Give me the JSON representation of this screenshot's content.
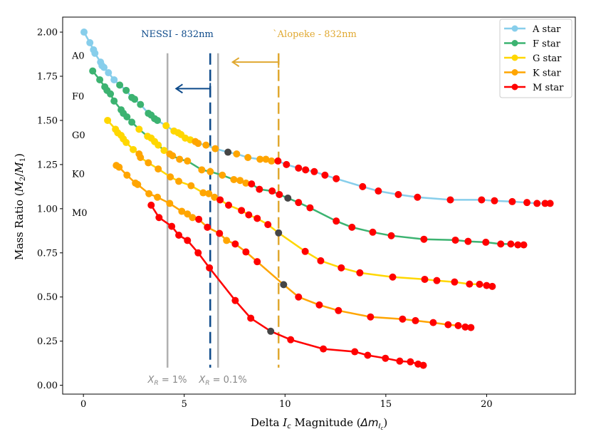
{
  "chart_data": {
    "type": "line",
    "xlabel": {
      "prefix": "Delta ",
      "var": "I",
      "sub": "c",
      "suffix": " Magnitude (",
      "delta": "Δm",
      "subvar": "I",
      "subsub": "c",
      "close": ")"
    },
    "ylabel": {
      "prefix": "Mass Ratio (",
      "num": "M",
      "num_sub": "2",
      "slash": "/",
      "den": "M",
      "den_sub": "1",
      "close": ")"
    },
    "xlim": [
      -1.03,
      24.4
    ],
    "ylim": [
      -0.05,
      2.085
    ],
    "xticks": [
      "0",
      "5",
      "10",
      "15",
      "20"
    ],
    "xtick_values": [
      0,
      5,
      10,
      15,
      20
    ],
    "yticks": [
      "0.00",
      "0.25",
      "0.50",
      "0.75",
      "1.00",
      "1.25",
      "1.50",
      "1.75",
      "2.00"
    ],
    "ytick_values": [
      0,
      0.25,
      0.5,
      0.75,
      1.0,
      1.25,
      1.5,
      1.75,
      2.0
    ],
    "grid": false,
    "legend_position": "top-right",
    "legend": [
      {
        "key": "A",
        "label": "A star",
        "color": "#87ceeb"
      },
      {
        "key": "F",
        "label": "F star",
        "color": "#3cb371"
      },
      {
        "key": "G",
        "label": "G star",
        "color": "#ffd700"
      },
      {
        "key": "K",
        "label": "K star",
        "color": "#ffa500"
      },
      {
        "key": "M",
        "label": "M star",
        "color": "#ff0000"
      }
    ],
    "highlight_color": "#454545",
    "series": [
      {
        "primary_label": "A0",
        "line_color": "#87ceeb",
        "points": [
          [
            0.03,
            2.0,
            "A"
          ],
          [
            0.32,
            1.94,
            "A"
          ],
          [
            0.5,
            1.9,
            "A"
          ],
          [
            0.57,
            1.88,
            "A"
          ],
          [
            0.85,
            1.83,
            "A"
          ],
          [
            0.92,
            1.81,
            "A"
          ],
          [
            1.02,
            1.8,
            "A"
          ],
          [
            1.24,
            1.77,
            "A"
          ],
          [
            1.52,
            1.73,
            "A"
          ],
          [
            1.8,
            1.7,
            "F"
          ],
          [
            2.12,
            1.67,
            "F"
          ],
          [
            2.4,
            1.63,
            "F"
          ],
          [
            2.54,
            1.62,
            "F"
          ],
          [
            2.83,
            1.59,
            "F"
          ],
          [
            3.22,
            1.54,
            "F"
          ],
          [
            3.36,
            1.53,
            "F"
          ],
          [
            3.53,
            1.51,
            "F"
          ],
          [
            3.67,
            1.5,
            "F"
          ],
          [
            4.1,
            1.47,
            "G"
          ],
          [
            4.49,
            1.44,
            "G"
          ],
          [
            4.7,
            1.43,
            "G"
          ],
          [
            4.84,
            1.42,
            "G"
          ],
          [
            5.05,
            1.4,
            "G"
          ],
          [
            5.3,
            1.39,
            "G"
          ],
          [
            5.55,
            1.38,
            "K"
          ],
          [
            5.69,
            1.37,
            "K"
          ],
          [
            6.08,
            1.36,
            "K"
          ],
          [
            6.54,
            1.34,
            "K"
          ],
          [
            7.17,
            1.32,
            "X"
          ],
          [
            7.6,
            1.31,
            "K"
          ],
          [
            8.16,
            1.29,
            "K"
          ],
          [
            8.76,
            1.28,
            "K"
          ],
          [
            9.05,
            1.28,
            "K"
          ],
          [
            9.33,
            1.27,
            "K"
          ],
          [
            9.65,
            1.27,
            "M"
          ],
          [
            10.07,
            1.25,
            "M"
          ],
          [
            10.67,
            1.23,
            "M"
          ],
          [
            11.02,
            1.22,
            "M"
          ],
          [
            11.45,
            1.21,
            "M"
          ],
          [
            11.98,
            1.19,
            "M"
          ],
          [
            12.54,
            1.17,
            "M"
          ],
          [
            13.85,
            1.125,
            "M"
          ],
          [
            14.63,
            1.1,
            "M"
          ],
          [
            15.62,
            1.08,
            "M"
          ],
          [
            16.57,
            1.065,
            "M"
          ],
          [
            18.2,
            1.05,
            "M"
          ],
          [
            19.75,
            1.05,
            "M"
          ],
          [
            20.39,
            1.045,
            "M"
          ],
          [
            21.27,
            1.04,
            "M"
          ],
          [
            22.0,
            1.035,
            "M"
          ],
          [
            22.5,
            1.03,
            "M"
          ],
          [
            22.9,
            1.03,
            "M"
          ],
          [
            23.15,
            1.03,
            "M"
          ]
        ]
      },
      {
        "primary_label": "F0",
        "line_color": "#3cb371",
        "points": [
          [
            0.46,
            1.78,
            "F"
          ],
          [
            0.81,
            1.73,
            "F"
          ],
          [
            1.06,
            1.69,
            "F"
          ],
          [
            1.17,
            1.67,
            "F"
          ],
          [
            1.34,
            1.65,
            "F"
          ],
          [
            1.52,
            1.61,
            "F"
          ],
          [
            1.87,
            1.56,
            "F"
          ],
          [
            1.98,
            1.54,
            "F"
          ],
          [
            2.16,
            1.52,
            "F"
          ],
          [
            2.4,
            1.49,
            "F"
          ],
          [
            2.76,
            1.45,
            "G"
          ],
          [
            3.18,
            1.41,
            "G"
          ],
          [
            3.36,
            1.4,
            "G"
          ],
          [
            3.53,
            1.38,
            "G"
          ],
          [
            3.71,
            1.36,
            "G"
          ],
          [
            4.0,
            1.33,
            "G"
          ],
          [
            4.28,
            1.31,
            "K"
          ],
          [
            4.42,
            1.3,
            "K"
          ],
          [
            4.77,
            1.28,
            "K"
          ],
          [
            5.16,
            1.27,
            "K"
          ],
          [
            5.87,
            1.22,
            "K"
          ],
          [
            6.29,
            1.21,
            "K"
          ],
          [
            6.89,
            1.19,
            "K"
          ],
          [
            7.46,
            1.165,
            "K"
          ],
          [
            7.77,
            1.16,
            "K"
          ],
          [
            8.06,
            1.145,
            "K"
          ],
          [
            8.34,
            1.14,
            "M"
          ],
          [
            8.73,
            1.11,
            "M"
          ],
          [
            9.36,
            1.1,
            "M"
          ],
          [
            9.72,
            1.08,
            "M"
          ],
          [
            10.14,
            1.06,
            "X"
          ],
          [
            10.67,
            1.035,
            "M"
          ],
          [
            11.24,
            1.005,
            "M"
          ],
          [
            12.54,
            0.93,
            "M"
          ],
          [
            13.32,
            0.895,
            "M"
          ],
          [
            14.35,
            0.867,
            "M"
          ],
          [
            15.27,
            0.847,
            "M"
          ],
          [
            16.89,
            0.827,
            "M"
          ],
          [
            18.45,
            0.822,
            "M"
          ],
          [
            19.08,
            0.815,
            "M"
          ],
          [
            19.96,
            0.81,
            "M"
          ],
          [
            20.7,
            0.8,
            "M"
          ],
          [
            21.2,
            0.8,
            "M"
          ],
          [
            21.55,
            0.795,
            "M"
          ],
          [
            21.84,
            0.795,
            "M"
          ]
        ]
      },
      {
        "primary_label": "G0",
        "line_color": "#ffd700",
        "points": [
          [
            1.2,
            1.5,
            "G"
          ],
          [
            1.59,
            1.45,
            "G"
          ],
          [
            1.7,
            1.43,
            "G"
          ],
          [
            1.87,
            1.415,
            "G"
          ],
          [
            1.98,
            1.395,
            "G"
          ],
          [
            2.12,
            1.375,
            "G"
          ],
          [
            2.47,
            1.335,
            "G"
          ],
          [
            2.76,
            1.31,
            "K"
          ],
          [
            2.83,
            1.29,
            "K"
          ],
          [
            3.22,
            1.26,
            "K"
          ],
          [
            3.71,
            1.225,
            "K"
          ],
          [
            4.31,
            1.18,
            "K"
          ],
          [
            4.73,
            1.155,
            "K"
          ],
          [
            5.34,
            1.13,
            "K"
          ],
          [
            5.94,
            1.09,
            "K"
          ],
          [
            6.22,
            1.085,
            "K"
          ],
          [
            6.5,
            1.065,
            "K"
          ],
          [
            6.78,
            1.05,
            "M"
          ],
          [
            7.2,
            1.02,
            "M"
          ],
          [
            7.84,
            0.99,
            "M"
          ],
          [
            8.2,
            0.965,
            "M"
          ],
          [
            8.62,
            0.945,
            "M"
          ],
          [
            9.15,
            0.91,
            "M"
          ],
          [
            9.68,
            0.863,
            "X"
          ],
          [
            11.0,
            0.758,
            "M"
          ],
          [
            11.77,
            0.705,
            "M"
          ],
          [
            12.79,
            0.665,
            "M"
          ],
          [
            13.71,
            0.637,
            "M"
          ],
          [
            15.34,
            0.613,
            "M"
          ],
          [
            16.93,
            0.6,
            "M"
          ],
          [
            17.53,
            0.593,
            "M"
          ],
          [
            18.41,
            0.585,
            "M"
          ],
          [
            19.15,
            0.573,
            "M"
          ],
          [
            19.65,
            0.572,
            "M"
          ],
          [
            20.0,
            0.565,
            "M"
          ],
          [
            20.28,
            0.56,
            "M"
          ]
        ]
      },
      {
        "primary_label": "K0",
        "line_color": "#ffa500",
        "points": [
          [
            1.63,
            1.245,
            "K"
          ],
          [
            1.77,
            1.235,
            "K"
          ],
          [
            2.16,
            1.19,
            "K"
          ],
          [
            2.58,
            1.145,
            "K"
          ],
          [
            2.69,
            1.137,
            "K"
          ],
          [
            3.25,
            1.085,
            "K"
          ],
          [
            3.67,
            1.065,
            "K"
          ],
          [
            4.28,
            1.03,
            "K"
          ],
          [
            4.88,
            0.985,
            "K"
          ],
          [
            5.16,
            0.97,
            "K"
          ],
          [
            5.41,
            0.95,
            "K"
          ],
          [
            5.72,
            0.94,
            "M"
          ],
          [
            6.15,
            0.895,
            "M"
          ],
          [
            6.75,
            0.86,
            "M"
          ],
          [
            7.1,
            0.82,
            "K"
          ],
          [
            7.53,
            0.8,
            "M"
          ],
          [
            8.06,
            0.755,
            "M"
          ],
          [
            8.62,
            0.7,
            "M"
          ],
          [
            9.93,
            0.57,
            "X"
          ],
          [
            10.67,
            0.5,
            "M"
          ],
          [
            11.7,
            0.455,
            "M"
          ],
          [
            12.65,
            0.423,
            "M"
          ],
          [
            14.24,
            0.387,
            "M"
          ],
          [
            15.83,
            0.375,
            "M"
          ],
          [
            16.47,
            0.366,
            "M"
          ],
          [
            17.35,
            0.355,
            "M"
          ],
          [
            18.09,
            0.343,
            "M"
          ],
          [
            18.59,
            0.338,
            "M"
          ],
          [
            18.94,
            0.33,
            "M"
          ],
          [
            19.22,
            0.327,
            "M"
          ]
        ]
      },
      {
        "primary_label": "M0",
        "line_color": "#ff0000",
        "points": [
          [
            3.36,
            1.02,
            "M"
          ],
          [
            3.75,
            0.95,
            "M"
          ],
          [
            4.38,
            0.9,
            "M"
          ],
          [
            4.73,
            0.85,
            "M"
          ],
          [
            5.16,
            0.82,
            "M"
          ],
          [
            5.69,
            0.75,
            "M"
          ],
          [
            6.25,
            0.665,
            "M"
          ],
          [
            7.53,
            0.48,
            "M"
          ],
          [
            8.3,
            0.38,
            "M"
          ],
          [
            9.29,
            0.306,
            "X"
          ],
          [
            10.28,
            0.258,
            "M"
          ],
          [
            11.9,
            0.206,
            "M"
          ],
          [
            13.46,
            0.19,
            "M"
          ],
          [
            14.1,
            0.17,
            "M"
          ],
          [
            14.98,
            0.153,
            "M"
          ],
          [
            15.69,
            0.137,
            "M"
          ],
          [
            16.22,
            0.133,
            "M"
          ],
          [
            16.6,
            0.12,
            "M"
          ],
          [
            16.86,
            0.113,
            "M"
          ]
        ]
      }
    ],
    "primary_labels": [
      "A0",
      "F0",
      "G0",
      "K0",
      "M0"
    ],
    "primary_label_y": [
      1.87,
      1.64,
      1.42,
      1.2,
      0.98
    ],
    "reference_lines": [
      {
        "x": 4.17,
        "color": "#b0b0b0",
        "style": "solid",
        "label_var": "X",
        "label_sub": "R",
        "label_text": " = 1%"
      },
      {
        "x": 6.68,
        "color": "#b0b0b0",
        "style": "solid",
        "label_var": "X",
        "label_sub": "R",
        "label_text": " = 0.1%"
      }
    ],
    "instruments": [
      {
        "name": "NESSI - 832nm",
        "x": 6.29,
        "color": "#0d4a8a",
        "arrow_to_x": 4.6,
        "arrow_y": 1.68
      },
      {
        "name": "`Alopeke - 832nm",
        "x": 9.68,
        "color": "#e0a830",
        "arrow_to_x": 7.4,
        "arrow_y": 1.83
      }
    ]
  }
}
